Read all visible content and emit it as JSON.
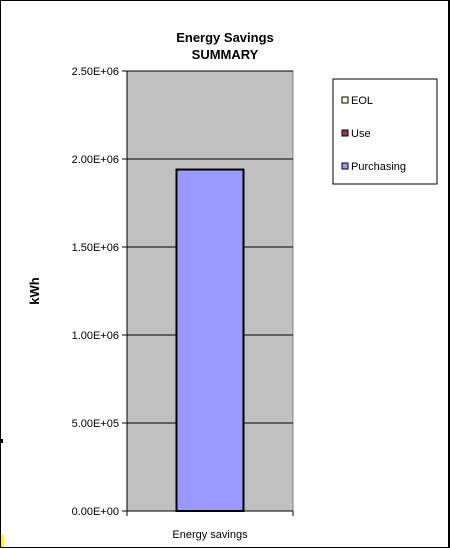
{
  "chart_data": {
    "type": "bar",
    "title": "Energy Savings",
    "subtitle": "SUMMARY",
    "ylabel": "kWh",
    "xlabel": "",
    "categories": [
      "Energy savings"
    ],
    "ylim": [
      0,
      2500000
    ],
    "yticks": [
      0,
      500000,
      1000000,
      1500000,
      2000000,
      2500000
    ],
    "ytick_labels": [
      "0.00E+00",
      "5.00E+05",
      "1.00E+06",
      "1.50E+06",
      "2.00E+06",
      "2.50E+06"
    ],
    "series": [
      {
        "name": "EOL",
        "values": [
          0
        ],
        "color": "#ffffcc"
      },
      {
        "name": "Use",
        "values": [
          0
        ],
        "color": "#993366"
      },
      {
        "name": "Purchasing",
        "values": [
          1940000
        ],
        "color": "#9999ff"
      }
    ],
    "legend_order": [
      "EOL",
      "Use",
      "Purchasing"
    ],
    "legend_position": "right",
    "grid": true,
    "plot_background": "#c0c0c0"
  }
}
